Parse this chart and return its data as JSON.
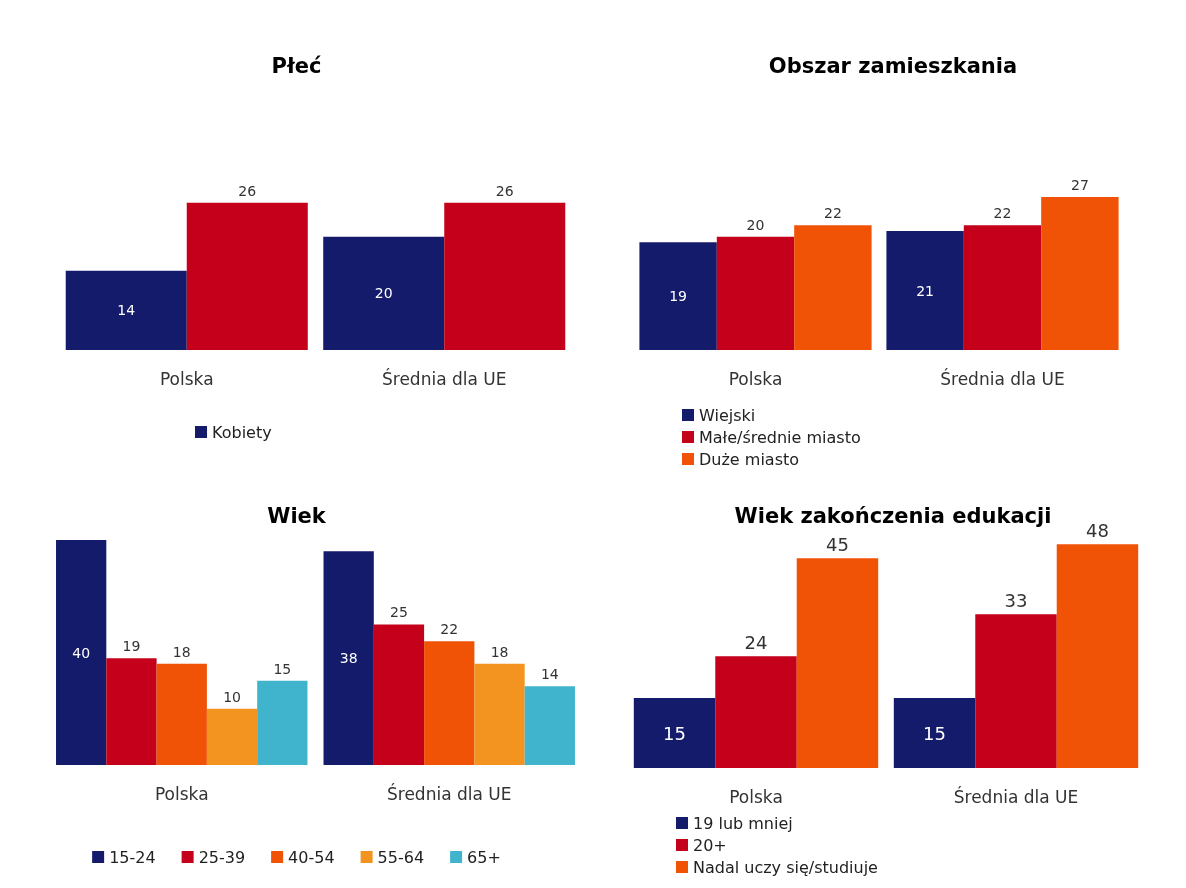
{
  "chart_data": [
    {
      "type": "bar",
      "title": "Płeć",
      "categories": [
        "Polska",
        "Średnia dla UE"
      ],
      "series": [
        {
          "name": "Kobiety",
          "color": "#141b6b",
          "values": [
            14,
            20
          ]
        },
        {
          "color": "#c4001a",
          "values": [
            26,
            26
          ]
        }
      ],
      "data_labels": true,
      "legend": "bottom"
    },
    {
      "type": "bar",
      "title": "Obszar zamieszkania",
      "categories": [
        "Polska",
        "Średnia dla UE"
      ],
      "series": [
        {
          "name": "Wiejski",
          "color": "#141b6b",
          "values": [
            19,
            21
          ]
        },
        {
          "name": "Małe/średnie miasto",
          "color": "#c4001a",
          "values": [
            20,
            22
          ]
        },
        {
          "name": "Duże miasto",
          "color": "#f05206",
          "values": [
            22,
            27
          ]
        }
      ],
      "data_labels": true,
      "legend": "bottom"
    },
    {
      "type": "bar",
      "title": "Wiek",
      "categories": [
        "Polska",
        "Średnia dla UE"
      ],
      "series": [
        {
          "name": "15-24",
          "color": "#141b6b",
          "values": [
            40,
            38
          ]
        },
        {
          "name": "25-39",
          "color": "#c4001a",
          "values": [
            19,
            25
          ]
        },
        {
          "name": "40-54",
          "color": "#f05206",
          "values": [
            18,
            22
          ]
        },
        {
          "name": "55-64",
          "color": "#f39420",
          "values": [
            10,
            18
          ]
        },
        {
          "name": "65+",
          "color": "#3fb4cc",
          "values": [
            15,
            14
          ]
        }
      ],
      "data_labels": true,
      "legend": "bottom"
    },
    {
      "type": "bar",
      "title": "Wiek zakończenia edukacji",
      "categories": [
        "Polska",
        "Średnia dla UE"
      ],
      "series": [
        {
          "name": "19 lub mniej",
          "color": "#141b6b",
          "values": [
            15,
            15
          ]
        },
        {
          "name": "20+",
          "color": "#c4001a",
          "values": [
            24,
            33
          ]
        },
        {
          "name": "Nadal uczy się/studiuje",
          "color": "#f05206",
          "values": [
            45,
            48
          ]
        }
      ],
      "data_labels": true,
      "legend": "bottom"
    }
  ]
}
